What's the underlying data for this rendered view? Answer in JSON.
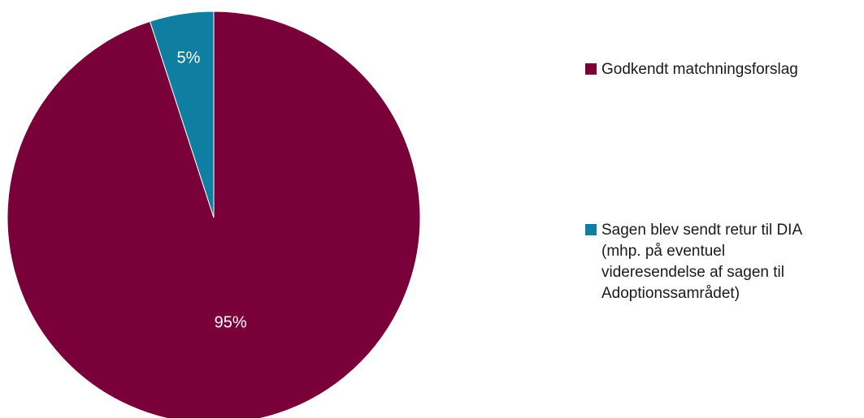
{
  "chart_data": {
    "type": "pie",
    "title": "",
    "slices": [
      {
        "name": "Godkendt matchningsforslag",
        "value": 95,
        "label": "95%",
        "color": "#7a003a"
      },
      {
        "name": "Sagen blev sendt retur til DIA\n(mhp. på eventuel\nvideresendelse af sagen til\nAdoptionssamrådet)",
        "value": 5,
        "label": "5%",
        "color": "#0e7fa1"
      }
    ],
    "legend_position": "right",
    "start_angle": "12 o'clock",
    "direction": "counterclockwise for second slice"
  }
}
